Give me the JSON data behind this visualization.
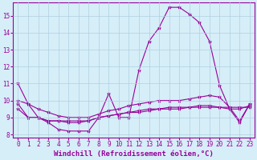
{
  "xlabel": "Windchill (Refroidissement éolien,°C)",
  "bg_color": "#d6eef8",
  "grid_color": "#b0cfe0",
  "line_color": "#990099",
  "xlim": [
    -0.5,
    23.5
  ],
  "ylim": [
    7.8,
    15.8
  ],
  "xticks": [
    0,
    1,
    2,
    3,
    4,
    5,
    6,
    7,
    8,
    9,
    10,
    11,
    12,
    13,
    14,
    15,
    16,
    17,
    18,
    19,
    20,
    21,
    22,
    23
  ],
  "yticks": [
    8,
    9,
    10,
    11,
    12,
    13,
    14,
    15
  ],
  "series1_x": [
    0,
    1,
    2,
    3,
    4,
    5,
    6,
    7,
    8,
    9,
    10,
    11,
    12,
    13,
    14,
    15,
    16,
    17,
    18,
    19,
    20,
    21,
    22,
    23
  ],
  "series1_y": [
    11.0,
    9.8,
    9.0,
    8.7,
    8.3,
    8.2,
    8.2,
    8.2,
    9.0,
    10.4,
    9.0,
    9.0,
    11.8,
    13.5,
    14.3,
    15.5,
    15.5,
    15.1,
    14.6,
    13.5,
    10.9,
    9.5,
    8.7,
    9.8
  ],
  "series2_x": [
    0,
    1,
    2,
    3,
    4,
    5,
    6,
    7,
    8,
    9,
    10,
    11,
    12,
    13,
    14,
    15,
    16,
    17,
    18,
    19,
    20,
    21,
    22,
    23
  ],
  "series2_y": [
    9.8,
    9.0,
    9.0,
    8.8,
    8.8,
    8.7,
    8.7,
    8.8,
    9.0,
    9.1,
    9.2,
    9.3,
    9.3,
    9.4,
    9.5,
    9.5,
    9.5,
    9.6,
    9.6,
    9.6,
    9.6,
    9.6,
    9.6,
    9.6
  ],
  "series3_x": [
    0,
    1,
    2,
    3,
    4,
    5,
    6,
    7,
    8,
    9,
    10,
    11,
    12,
    13,
    14,
    15,
    16,
    17,
    18,
    19,
    20,
    21,
    22,
    23
  ],
  "series3_y": [
    9.5,
    9.0,
    9.0,
    8.8,
    8.8,
    8.8,
    8.8,
    8.8,
    9.0,
    9.1,
    9.2,
    9.3,
    9.4,
    9.5,
    9.5,
    9.6,
    9.6,
    9.6,
    9.7,
    9.7,
    9.6,
    9.5,
    9.5,
    9.7
  ],
  "series4_x": [
    0,
    1,
    2,
    3,
    4,
    5,
    6,
    7,
    8,
    9,
    10,
    11,
    12,
    13,
    14,
    15,
    16,
    17,
    18,
    19,
    20,
    21,
    22,
    23
  ],
  "series4_y": [
    10.0,
    9.8,
    9.5,
    9.3,
    9.1,
    9.0,
    9.0,
    9.0,
    9.2,
    9.4,
    9.5,
    9.7,
    9.8,
    9.9,
    10.0,
    10.0,
    10.0,
    10.1,
    10.2,
    10.3,
    10.2,
    9.6,
    8.8,
    9.8
  ],
  "marker": "*",
  "markersize": 3,
  "linewidth": 0.8,
  "xlabel_fontsize": 6.5,
  "tick_fontsize": 5.5
}
